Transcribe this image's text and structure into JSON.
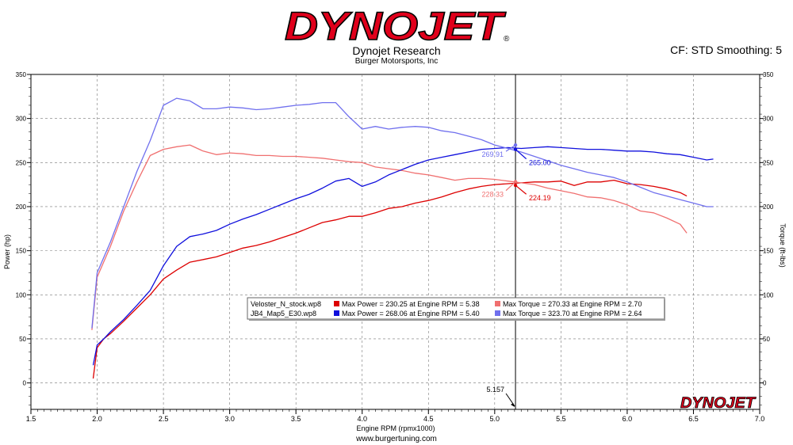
{
  "header": {
    "logo_text": "DYNOJET",
    "logo_mark": "®",
    "title": "Dynojet Research",
    "subtitle": "Burger Motorsports, Inc",
    "corrections": "CF: STD Smoothing: 5"
  },
  "footer": {
    "website": "www.burgertuning.com"
  },
  "watermark": "DYNOJET",
  "colors": {
    "stock_power": "#dd0000",
    "stock_torque": "#f07070",
    "jb4_power": "#1010dd",
    "jb4_torque": "#7070ee"
  },
  "chart_data": {
    "type": "line",
    "xlabel": "Engine RPM (rpmx1000)",
    "ylabel": "Power (hp)",
    "y2label": "Torque (ft-lbs)",
    "xlim": [
      1.5,
      7.0
    ],
    "ylim": [
      -30,
      350
    ],
    "xticks": [
      "1.5",
      "2.0",
      "2.5",
      "3.0",
      "3.5",
      "4.0",
      "4.5",
      "5.0",
      "5.5",
      "6.0",
      "6.5",
      "7.0"
    ],
    "yticks": [
      "0",
      "50",
      "100",
      "150",
      "200",
      "250",
      "300",
      "350"
    ],
    "grid": true,
    "cursor": {
      "x": 5.157,
      "label": "5.157"
    },
    "series": [
      {
        "name": "Veloster_N_stock.wp8 Power",
        "color_key": "stock_power",
        "x": [
          1.97,
          2.0,
          2.05,
          2.1,
          2.2,
          2.3,
          2.4,
          2.5,
          2.6,
          2.7,
          2.8,
          2.9,
          3.0,
          3.1,
          3.2,
          3.3,
          3.4,
          3.5,
          3.6,
          3.7,
          3.8,
          3.9,
          4.0,
          4.1,
          4.2,
          4.3,
          4.4,
          4.5,
          4.6,
          4.7,
          4.8,
          4.9,
          5.0,
          5.1,
          5.2,
          5.3,
          5.4,
          5.5,
          5.6,
          5.7,
          5.8,
          5.9,
          6.0,
          6.1,
          6.2,
          6.3,
          6.4,
          6.45
        ],
        "y": [
          5,
          40,
          50,
          56,
          70,
          85,
          100,
          118,
          128,
          137,
          140,
          143,
          148,
          153,
          156,
          160,
          165,
          170,
          176,
          182,
          185,
          189,
          189,
          193,
          198,
          200,
          204,
          207,
          211,
          216,
          220,
          223,
          225,
          226,
          227,
          228,
          228,
          229,
          224,
          228,
          228,
          230,
          226,
          225,
          223,
          220,
          216,
          212
        ]
      },
      {
        "name": "Veloster_N_stock.wp8 Torque",
        "color_key": "stock_torque",
        "x": [
          1.96,
          2.0,
          2.1,
          2.2,
          2.3,
          2.4,
          2.5,
          2.6,
          2.7,
          2.8,
          2.9,
          3.0,
          3.1,
          3.2,
          3.3,
          3.4,
          3.5,
          3.6,
          3.7,
          3.8,
          3.9,
          4.0,
          4.1,
          4.2,
          4.3,
          4.4,
          4.5,
          4.6,
          4.7,
          4.8,
          4.9,
          5.0,
          5.1,
          5.2,
          5.3,
          5.4,
          5.5,
          5.6,
          5.7,
          5.8,
          5.9,
          6.0,
          6.1,
          6.2,
          6.3,
          6.4,
          6.45
        ],
        "y": [
          60,
          120,
          155,
          195,
          228,
          258,
          265,
          268,
          270,
          263,
          259,
          261,
          260,
          258,
          258,
          257,
          257,
          256,
          255,
          253,
          251,
          250,
          245,
          243,
          241,
          238,
          236,
          233,
          230,
          232,
          232,
          231,
          229,
          227,
          225,
          221,
          218,
          215,
          211,
          210,
          207,
          202,
          195,
          193,
          187,
          180,
          170
        ]
      },
      {
        "name": "JB4_Map5_E30.wp8 Power",
        "color_key": "jb4_power",
        "x": [
          1.97,
          2.0,
          2.05,
          2.1,
          2.2,
          2.3,
          2.4,
          2.5,
          2.6,
          2.7,
          2.8,
          2.9,
          3.0,
          3.1,
          3.2,
          3.3,
          3.4,
          3.5,
          3.6,
          3.7,
          3.8,
          3.9,
          4.0,
          4.1,
          4.2,
          4.3,
          4.4,
          4.5,
          4.6,
          4.7,
          4.8,
          4.9,
          5.0,
          5.1,
          5.2,
          5.3,
          5.4,
          5.5,
          5.6,
          5.7,
          5.8,
          5.9,
          6.0,
          6.1,
          6.2,
          6.3,
          6.4,
          6.5,
          6.6,
          6.65
        ],
        "y": [
          20,
          43,
          50,
          58,
          72,
          88,
          105,
          133,
          155,
          166,
          169,
          173,
          180,
          186,
          191,
          197,
          203,
          209,
          214,
          221,
          229,
          232,
          223,
          228,
          236,
          242,
          248,
          253,
          256,
          259,
          262,
          265,
          266,
          267,
          266,
          267,
          268,
          267,
          266,
          265,
          265,
          264,
          263,
          263,
          262,
          260,
          259,
          256,
          253,
          254
        ]
      },
      {
        "name": "JB4_Map5_E30.wp8 Torque",
        "color_key": "jb4_torque",
        "x": [
          1.96,
          2.0,
          2.1,
          2.2,
          2.3,
          2.4,
          2.5,
          2.6,
          2.7,
          2.8,
          2.9,
          3.0,
          3.1,
          3.2,
          3.3,
          3.4,
          3.5,
          3.6,
          3.7,
          3.8,
          3.9,
          4.0,
          4.1,
          4.2,
          4.3,
          4.4,
          4.5,
          4.6,
          4.7,
          4.8,
          4.9,
          5.0,
          5.1,
          5.2,
          5.3,
          5.4,
          5.5,
          5.6,
          5.7,
          5.8,
          5.9,
          6.0,
          6.1,
          6.2,
          6.3,
          6.4,
          6.5,
          6.6,
          6.65
        ],
        "y": [
          62,
          125,
          160,
          200,
          240,
          275,
          315,
          323,
          320,
          311,
          311,
          313,
          312,
          310,
          311,
          313,
          315,
          316,
          318,
          318,
          302,
          288,
          291,
          288,
          290,
          291,
          290,
          286,
          284,
          280,
          276,
          270,
          266,
          262,
          257,
          252,
          247,
          243,
          239,
          236,
          233,
          228,
          222,
          216,
          212,
          208,
          204,
          200,
          200
        ]
      }
    ],
    "cursor_labels": [
      {
        "text": "269.91",
        "series": "JB4_Map5_E30.wp8 Torque",
        "color_key": "jb4_torque",
        "x": 5.157,
        "y": 269.91
      },
      {
        "text": "265.00",
        "series": "JB4_Map5_E30.wp8 Power",
        "color_key": "jb4_power",
        "x": 5.157,
        "y": 265.0
      },
      {
        "text": "228.33",
        "series": "Veloster_N_stock.wp8 Torque",
        "color_key": "stock_torque",
        "x": 5.157,
        "y": 228.33
      },
      {
        "text": "224.19",
        "series": "Veloster_N_stock.wp8 Power",
        "color_key": "stock_power",
        "x": 5.157,
        "y": 224.19
      }
    ],
    "legend": {
      "position": "center",
      "rows": [
        {
          "file": "Veloster_N_stock.wp8",
          "power_text": "Max Power = 230.25 at Engine RPM = 5.38",
          "torque_text": "Max Torque = 270.33 at Engine RPM = 2.70",
          "power_color_key": "stock_power",
          "torque_color_key": "stock_torque"
        },
        {
          "file": "JB4_Map5_E30.wp8",
          "power_text": "Max Power = 268.06 at Engine RPM = 5.40",
          "torque_text": "Max Torque = 323.70 at Engine RPM = 2.64",
          "power_color_key": "jb4_power",
          "torque_color_key": "jb4_torque"
        }
      ]
    }
  }
}
